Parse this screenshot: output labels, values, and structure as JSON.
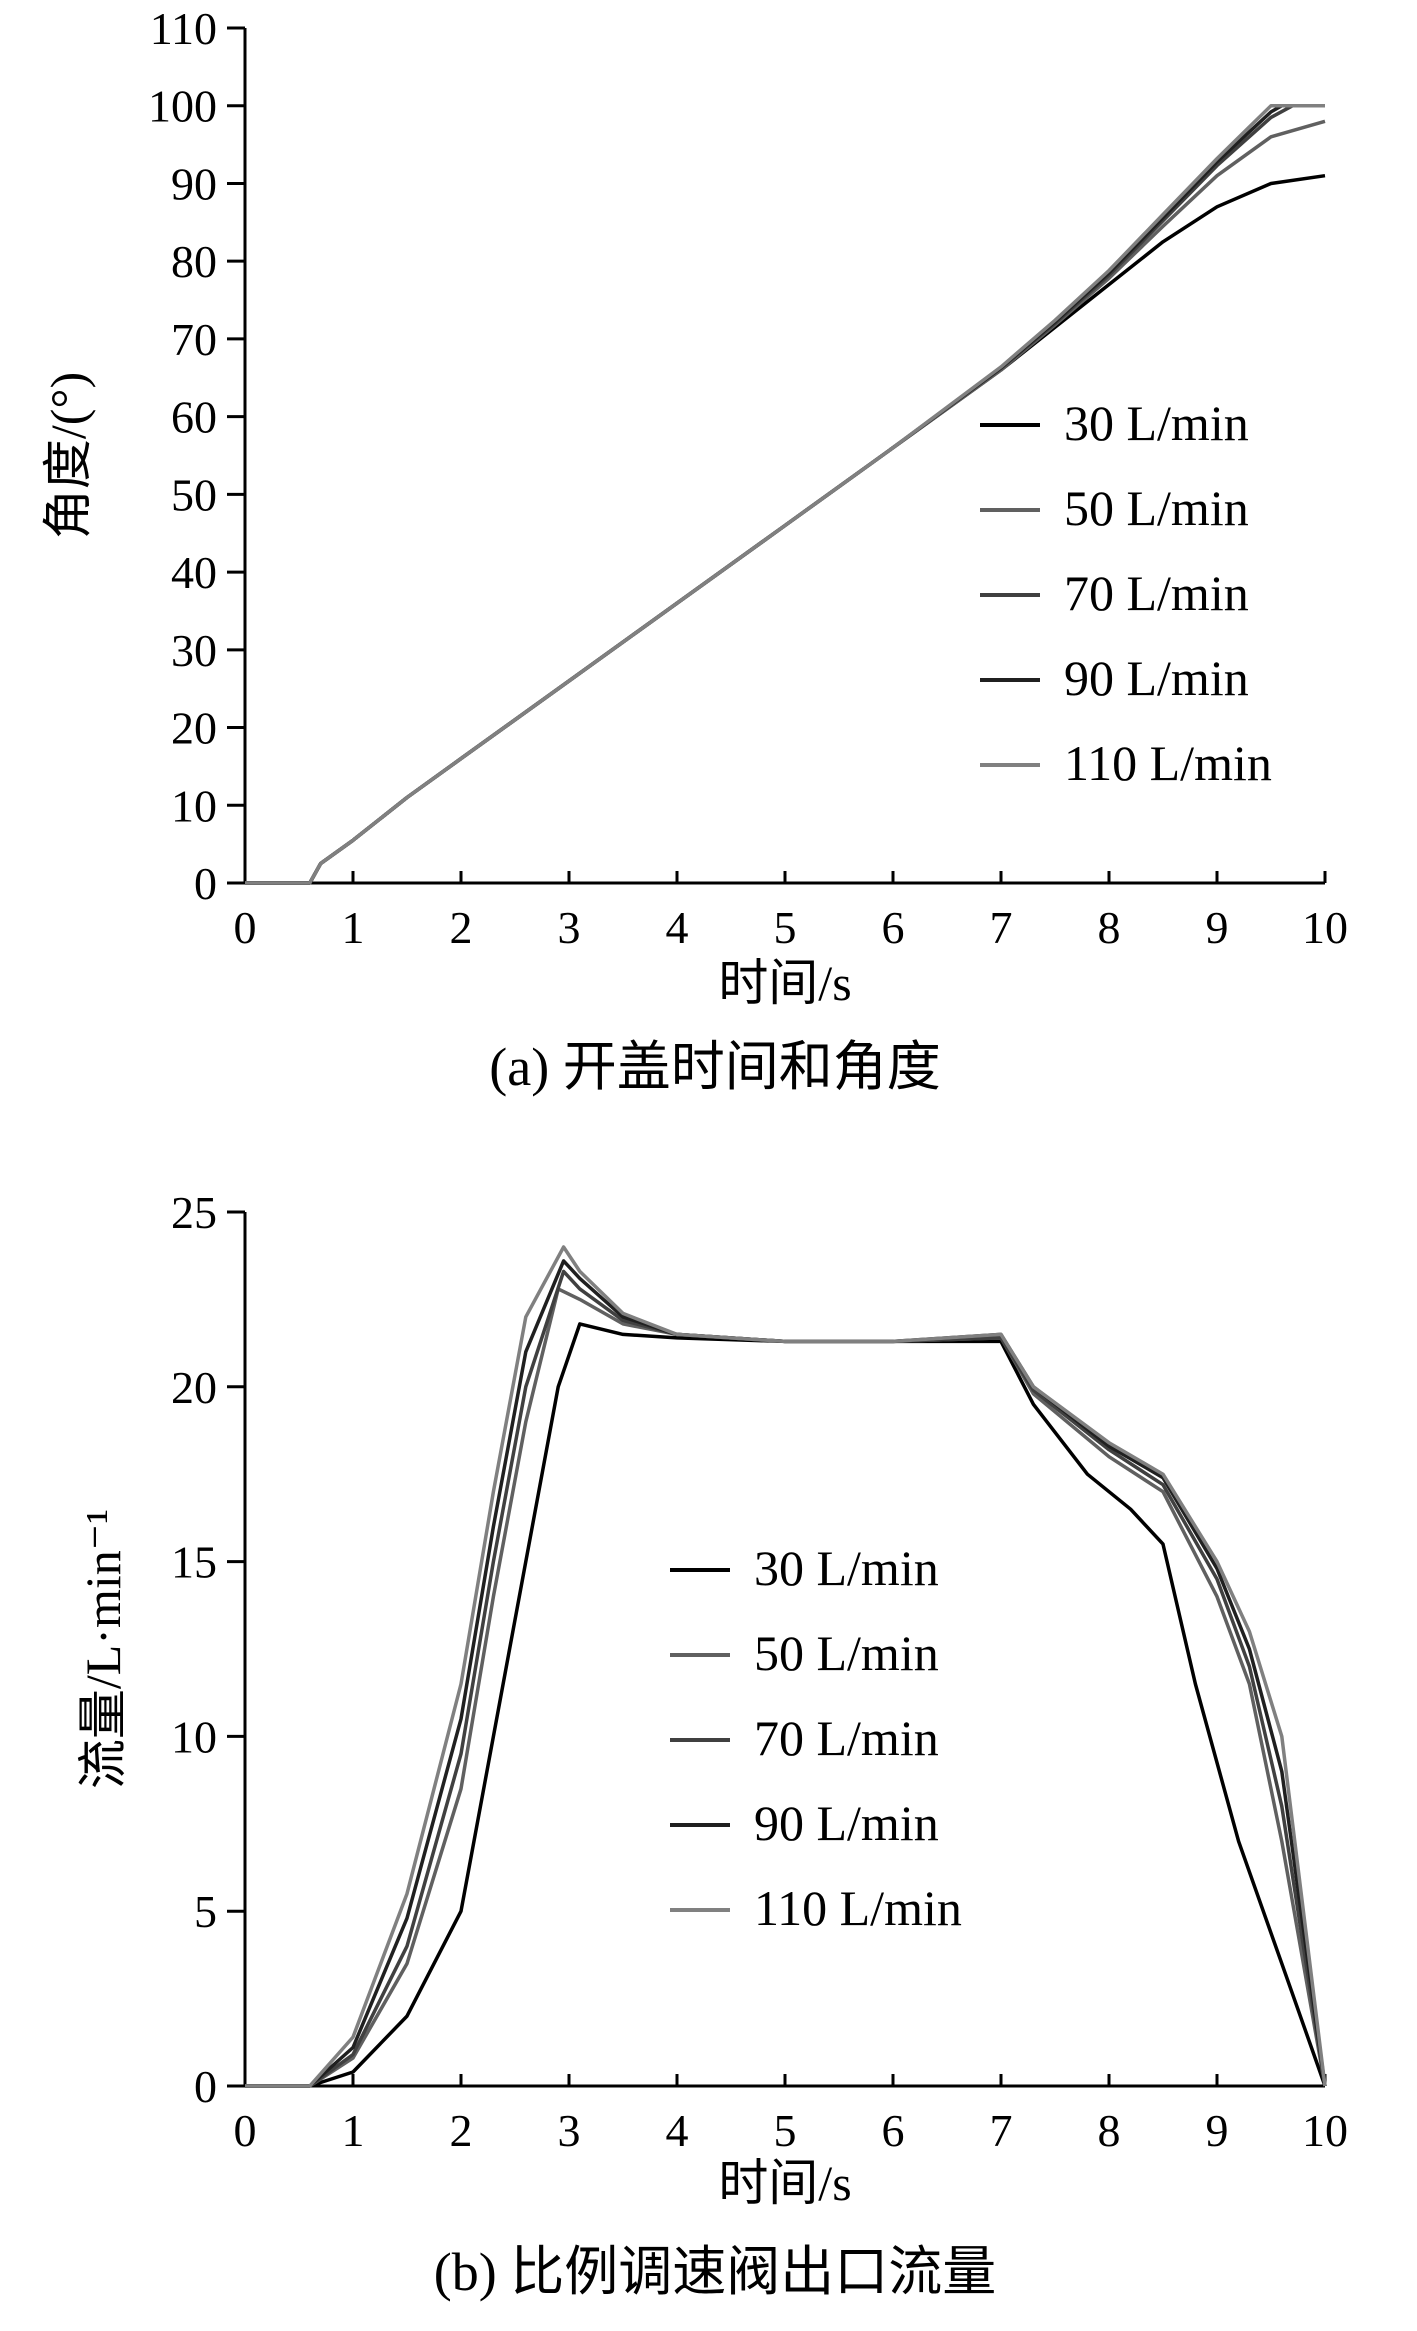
{
  "colors": {
    "30": "#000000",
    "50": "#606060",
    "70": "#404040",
    "90": "#202020",
    "110": "#808080",
    "axis": "#000000"
  },
  "chart_data": [
    {
      "id": "a",
      "type": "line",
      "caption": "(a) 开盖时间和角度",
      "xlabel": "时间/s",
      "ylabel": "角度/(°)",
      "xlim": [
        0,
        10
      ],
      "ylim": [
        0,
        110
      ],
      "xticks": [
        "0",
        "1",
        "2",
        "3",
        "4",
        "5",
        "6",
        "7",
        "8",
        "9",
        "10"
      ],
      "yticks": [
        "0",
        "10",
        "20",
        "30",
        "40",
        "50",
        "60",
        "70",
        "80",
        "90",
        "100",
        "110"
      ],
      "legend_position": "right",
      "series": [
        {
          "name": "30 L/min",
          "color_key": "30",
          "points": [
            [
              0,
              0
            ],
            [
              0.6,
              0
            ],
            [
              0.7,
              2.5
            ],
            [
              1,
              5.5
            ],
            [
              1.5,
              11
            ],
            [
              2,
              16
            ],
            [
              3,
              26
            ],
            [
              4,
              36
            ],
            [
              5,
              46
            ],
            [
              6,
              56
            ],
            [
              7,
              66
            ],
            [
              7.5,
              71.5
            ],
            [
              8,
              77
            ],
            [
              8.5,
              82.5
            ],
            [
              9,
              87
            ],
            [
              9.5,
              90
            ],
            [
              10,
              91
            ]
          ]
        },
        {
          "name": "50 L/min",
          "color_key": "50",
          "points": [
            [
              0,
              0
            ],
            [
              0.6,
              0
            ],
            [
              0.7,
              2.5
            ],
            [
              1,
              5.5
            ],
            [
              1.5,
              11
            ],
            [
              2,
              16
            ],
            [
              3,
              26
            ],
            [
              4,
              36
            ],
            [
              5,
              46
            ],
            [
              6,
              56
            ],
            [
              7,
              66
            ],
            [
              7.5,
              71.8
            ],
            [
              8,
              77.8
            ],
            [
              8.5,
              84.5
            ],
            [
              9,
              91
            ],
            [
              9.5,
              96
            ],
            [
              10,
              98
            ]
          ]
        },
        {
          "name": "70 L/min",
          "color_key": "70",
          "points": [
            [
              0,
              0
            ],
            [
              0.6,
              0
            ],
            [
              0.7,
              2.5
            ],
            [
              1,
              5.5
            ],
            [
              1.5,
              11
            ],
            [
              2,
              16
            ],
            [
              3,
              26
            ],
            [
              4,
              36
            ],
            [
              5,
              46
            ],
            [
              6,
              56
            ],
            [
              7,
              66.2
            ],
            [
              7.5,
              72
            ],
            [
              8,
              78.2
            ],
            [
              8.5,
              85.2
            ],
            [
              9,
              92.3
            ],
            [
              9.5,
              98.5
            ],
            [
              9.7,
              100
            ],
            [
              10,
              100
            ]
          ]
        },
        {
          "name": "90 L/min",
          "color_key": "90",
          "points": [
            [
              0,
              0
            ],
            [
              0.6,
              0
            ],
            [
              0.7,
              2.5
            ],
            [
              1,
              5.5
            ],
            [
              1.5,
              11
            ],
            [
              2,
              16
            ],
            [
              3,
              26
            ],
            [
              4,
              36
            ],
            [
              5,
              46
            ],
            [
              6,
              56
            ],
            [
              7,
              66.3
            ],
            [
              7.5,
              72.2
            ],
            [
              8,
              78.5
            ],
            [
              8.5,
              85.6
            ],
            [
              9,
              92.8
            ],
            [
              9.5,
              99.2
            ],
            [
              9.6,
              100
            ],
            [
              10,
              100
            ]
          ]
        },
        {
          "name": "110 L/min",
          "color_key": "110",
          "points": [
            [
              0,
              0
            ],
            [
              0.6,
              0
            ],
            [
              0.7,
              2.5
            ],
            [
              1,
              5.5
            ],
            [
              1.5,
              11
            ],
            [
              2,
              16
            ],
            [
              3,
              26
            ],
            [
              4,
              36
            ],
            [
              5,
              46
            ],
            [
              6,
              56
            ],
            [
              7,
              66.4
            ],
            [
              7.5,
              72.4
            ],
            [
              8,
              78.8
            ],
            [
              8.5,
              86
            ],
            [
              9,
              93.2
            ],
            [
              9.5,
              100
            ],
            [
              10,
              100
            ]
          ]
        }
      ]
    },
    {
      "id": "b",
      "type": "line",
      "caption": "(b) 比例调速阀出口流量",
      "xlabel": "时间/s",
      "ylabel": "流量/L·min⁻¹",
      "xlim": [
        0,
        10
      ],
      "ylim": [
        0,
        25
      ],
      "xticks": [
        "0",
        "1",
        "2",
        "3",
        "4",
        "5",
        "6",
        "7",
        "8",
        "9",
        "10"
      ],
      "yticks": [
        "0",
        "5",
        "10",
        "15",
        "20",
        "25"
      ],
      "legend_position": "center",
      "series": [
        {
          "name": "30 L/min",
          "color_key": "30",
          "points": [
            [
              0,
              0
            ],
            [
              0.6,
              0
            ],
            [
              1,
              0.4
            ],
            [
              1.5,
              2
            ],
            [
              2,
              5
            ],
            [
              2.3,
              10
            ],
            [
              2.6,
              15
            ],
            [
              2.9,
              20
            ],
            [
              3.1,
              21.8
            ],
            [
              3.5,
              21.5
            ],
            [
              4,
              21.4
            ],
            [
              5,
              21.3
            ],
            [
              6,
              21.3
            ],
            [
              7,
              21.3
            ],
            [
              7.3,
              19.5
            ],
            [
              7.8,
              17.5
            ],
            [
              8.2,
              16.5
            ],
            [
              8.5,
              15.5
            ],
            [
              8.8,
              11.5
            ],
            [
              9.2,
              7
            ],
            [
              9.6,
              3.5
            ],
            [
              10,
              0
            ]
          ]
        },
        {
          "name": "50 L/min",
          "color_key": "50",
          "points": [
            [
              0,
              0
            ],
            [
              0.6,
              0
            ],
            [
              1,
              0.8
            ],
            [
              1.5,
              3.5
            ],
            [
              2,
              8.5
            ],
            [
              2.3,
              14
            ],
            [
              2.6,
              19
            ],
            [
              2.9,
              22.8
            ],
            [
              3.1,
              22.5
            ],
            [
              3.5,
              21.8
            ],
            [
              4,
              21.5
            ],
            [
              5,
              21.3
            ],
            [
              6,
              21.3
            ],
            [
              7,
              21.4
            ],
            [
              7.3,
              19.8
            ],
            [
              8,
              18
            ],
            [
              8.5,
              17
            ],
            [
              9,
              14
            ],
            [
              9.3,
              11.5
            ],
            [
              9.6,
              7
            ],
            [
              10,
              0
            ]
          ]
        },
        {
          "name": "70 L/min",
          "color_key": "70",
          "points": [
            [
              0,
              0
            ],
            [
              0.6,
              0
            ],
            [
              1,
              0.9
            ],
            [
              1.5,
              4
            ],
            [
              2,
              9.5
            ],
            [
              2.3,
              15
            ],
            [
              2.6,
              20
            ],
            [
              2.95,
              23.3
            ],
            [
              3.1,
              22.8
            ],
            [
              3.5,
              21.9
            ],
            [
              4,
              21.5
            ],
            [
              5,
              21.3
            ],
            [
              6,
              21.3
            ],
            [
              7,
              21.4
            ],
            [
              7.3,
              19.9
            ],
            [
              8,
              18.2
            ],
            [
              8.5,
              17.2
            ],
            [
              9,
              14.5
            ],
            [
              9.3,
              12
            ],
            [
              9.6,
              8
            ],
            [
              10,
              0
            ]
          ]
        },
        {
          "name": "90 L/min",
          "color_key": "90",
          "points": [
            [
              0,
              0
            ],
            [
              0.6,
              0
            ],
            [
              1,
              1.1
            ],
            [
              1.5,
              4.8
            ],
            [
              2,
              10.5
            ],
            [
              2.3,
              16
            ],
            [
              2.6,
              21
            ],
            [
              2.95,
              23.6
            ],
            [
              3.1,
              23.1
            ],
            [
              3.5,
              22
            ],
            [
              4,
              21.5
            ],
            [
              5,
              21.3
            ],
            [
              6,
              21.3
            ],
            [
              7,
              21.5
            ],
            [
              7.3,
              20
            ],
            [
              8,
              18.3
            ],
            [
              8.5,
              17.4
            ],
            [
              9,
              14.8
            ],
            [
              9.3,
              12.5
            ],
            [
              9.6,
              9
            ],
            [
              10,
              0
            ]
          ]
        },
        {
          "name": "110 L/min",
          "color_key": "110",
          "points": [
            [
              0,
              0
            ],
            [
              0.6,
              0
            ],
            [
              1,
              1.4
            ],
            [
              1.5,
              5.5
            ],
            [
              2,
              11.5
            ],
            [
              2.3,
              17
            ],
            [
              2.6,
              22
            ],
            [
              2.95,
              24
            ],
            [
              3.1,
              23.3
            ],
            [
              3.5,
              22.1
            ],
            [
              4,
              21.5
            ],
            [
              5,
              21.3
            ],
            [
              6,
              21.3
            ],
            [
              7,
              21.5
            ],
            [
              7.3,
              20
            ],
            [
              8,
              18.4
            ],
            [
              8.5,
              17.5
            ],
            [
              9,
              15
            ],
            [
              9.3,
              13
            ],
            [
              9.6,
              10
            ],
            [
              10,
              0
            ]
          ]
        }
      ]
    }
  ]
}
